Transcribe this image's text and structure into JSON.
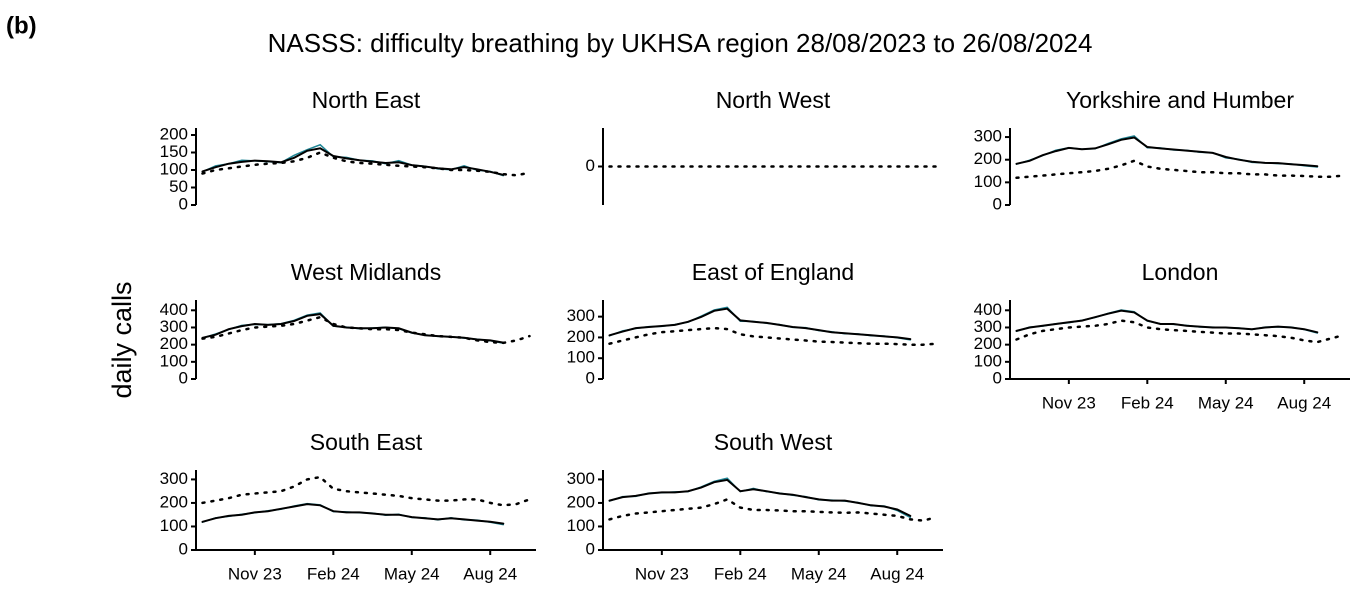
{
  "panel_label": "(b)",
  "title": "NASSS: difficulty breathing by UKHSA region 28/08/2023 to 26/08/2024",
  "y_label": "daily calls",
  "chart_data": [
    {
      "type": "line",
      "title": "North East",
      "x_axis": false,
      "categories": [
        null,
        null,
        null,
        null,
        "Nov 23",
        null,
        null,
        null,
        null,
        null,
        "Feb 24",
        null,
        null,
        null,
        null,
        null,
        "May 24",
        null,
        null,
        null,
        null,
        null,
        "Aug 24",
        null,
        null,
        null
      ],
      "ylim": [
        0,
        220
      ],
      "yticks": [
        0,
        50,
        100,
        150,
        200
      ],
      "series": [
        {
          "color": "#1f8595",
          "line_style": "solid",
          "values": [
            95,
            112,
            118,
            128,
            126,
            124,
            121,
            142,
            158,
            172,
            138,
            136,
            128,
            126,
            118,
            127,
            114,
            111,
            103,
            101,
            112,
            99,
            96,
            84,
            null,
            null
          ]
        },
        {
          "color": "#000000",
          "line_style": "solid",
          "values": [
            96,
            108,
            118,
            123,
            127,
            125,
            122,
            135,
            155,
            162,
            140,
            133,
            128,
            124,
            120,
            122,
            114,
            110,
            105,
            102,
            108,
            102,
            95,
            86,
            null,
            null
          ]
        },
        {
          "color": "#000000",
          "line_style": "dotted",
          "values": [
            90,
            100,
            105,
            110,
            115,
            118,
            120,
            125,
            135,
            150,
            135,
            125,
            120,
            118,
            115,
            112,
            110,
            108,
            105,
            100,
            100,
            98,
            95,
            88,
            85,
            92
          ]
        }
      ]
    },
    {
      "type": "line",
      "title": "North West",
      "x_axis": false,
      "categories": [
        null,
        null,
        null,
        null,
        "Nov 23",
        null,
        null,
        null,
        null,
        null,
        "Feb 24",
        null,
        null,
        null,
        null,
        null,
        "May 24",
        null,
        null,
        null,
        null,
        null,
        "Aug 24",
        null,
        null,
        null
      ],
      "ylim": [
        -1,
        1
      ],
      "yticks": [
        0
      ],
      "series": [
        {
          "color": "#000000",
          "line_style": "dotted",
          "values": [
            0,
            0,
            0,
            0,
            0,
            0,
            0,
            0,
            0,
            0,
            0,
            0,
            0,
            0,
            0,
            0,
            0,
            0,
            0,
            0,
            0,
            0,
            0,
            0,
            0,
            0
          ]
        }
      ]
    },
    {
      "type": "line",
      "title": "Yorkshire and Humber",
      "x_axis": false,
      "categories": [
        null,
        null,
        null,
        null,
        "Nov 23",
        null,
        null,
        null,
        null,
        null,
        "Feb 24",
        null,
        null,
        null,
        null,
        null,
        "May 24",
        null,
        null,
        null,
        null,
        null,
        "Aug 24",
        null,
        null,
        null
      ],
      "ylim": [
        0,
        340
      ],
      "yticks": [
        0,
        100,
        200,
        300
      ],
      "series": [
        {
          "color": "#1f8595",
          "line_style": "solid",
          "values": [
            180,
            198,
            218,
            242,
            253,
            247,
            248,
            272,
            292,
            305,
            253,
            252,
            243,
            242,
            233,
            231,
            208,
            202,
            188,
            186,
            183,
            181,
            173,
            168,
            null,
            null
          ]
        },
        {
          "color": "#000000",
          "line_style": "solid",
          "values": [
            182,
            195,
            220,
            238,
            252,
            246,
            250,
            268,
            288,
            298,
            256,
            250,
            245,
            240,
            235,
            230,
            212,
            200,
            191,
            186,
            185,
            180,
            176,
            171,
            null,
            null
          ]
        },
        {
          "color": "#000000",
          "line_style": "dotted",
          "values": [
            120,
            125,
            130,
            135,
            140,
            145,
            150,
            160,
            175,
            195,
            170,
            160,
            155,
            150,
            145,
            145,
            140,
            140,
            135,
            135,
            130,
            130,
            128,
            125,
            125,
            130
          ]
        }
      ]
    },
    {
      "type": "line",
      "title": "West Midlands",
      "x_axis": false,
      "categories": [
        null,
        null,
        null,
        null,
        "Nov 23",
        null,
        null,
        null,
        null,
        null,
        "Feb 24",
        null,
        null,
        null,
        null,
        null,
        "May 24",
        null,
        null,
        null,
        null,
        null,
        "Aug 24",
        null,
        null,
        null
      ],
      "ylim": [
        0,
        460
      ],
      "yticks": [
        0,
        100,
        200,
        300,
        400
      ],
      "series": [
        {
          "color": "#1f8595",
          "line_style": "solid",
          "values": [
            238,
            262,
            288,
            312,
            318,
            317,
            322,
            342,
            372,
            385,
            308,
            302,
            293,
            297,
            301,
            293,
            268,
            257,
            248,
            246,
            238,
            232,
            223,
            208,
            null,
            null
          ]
        },
        {
          "color": "#000000",
          "line_style": "solid",
          "values": [
            240,
            258,
            290,
            308,
            320,
            315,
            320,
            338,
            368,
            378,
            310,
            300,
            295,
            295,
            300,
            295,
            270,
            255,
            250,
            245,
            240,
            230,
            225,
            212,
            null,
            null
          ]
        },
        {
          "color": "#000000",
          "line_style": "dotted",
          "values": [
            235,
            245,
            265,
            285,
            300,
            305,
            310,
            320,
            340,
            360,
            320,
            300,
            295,
            290,
            290,
            285,
            270,
            260,
            250,
            245,
            240,
            225,
            215,
            210,
            225,
            250
          ]
        }
      ]
    },
    {
      "type": "line",
      "title": "East of England",
      "x_axis": false,
      "categories": [
        null,
        null,
        null,
        null,
        "Nov 23",
        null,
        null,
        null,
        null,
        null,
        "Feb 24",
        null,
        null,
        null,
        null,
        null,
        "May 24",
        null,
        null,
        null,
        null,
        null,
        "Aug 24",
        null,
        null,
        null
      ],
      "ylim": [
        0,
        380
      ],
      "yticks": [
        0,
        100,
        200,
        300
      ],
      "series": [
        {
          "color": "#1f8595",
          "line_style": "solid",
          "values": [
            208,
            232,
            243,
            252,
            253,
            262,
            273,
            302,
            332,
            345,
            278,
            277,
            268,
            262,
            248,
            247,
            233,
            227,
            218,
            217,
            208,
            207,
            198,
            188,
            null,
            null
          ]
        },
        {
          "color": "#000000",
          "line_style": "solid",
          "values": [
            210,
            228,
            245,
            250,
            255,
            260,
            275,
            298,
            328,
            338,
            282,
            275,
            270,
            260,
            250,
            245,
            235,
            225,
            220,
            215,
            210,
            205,
            200,
            192,
            null,
            null
          ]
        },
        {
          "color": "#000000",
          "line_style": "dotted",
          "values": [
            170,
            185,
            200,
            215,
            225,
            230,
            235,
            240,
            245,
            240,
            215,
            205,
            200,
            195,
            190,
            185,
            180,
            178,
            175,
            172,
            170,
            170,
            168,
            165,
            165,
            170
          ]
        }
      ]
    },
    {
      "type": "line",
      "title": "London",
      "x_axis": true,
      "categories": [
        null,
        null,
        null,
        null,
        "Nov 23",
        null,
        null,
        null,
        null,
        null,
        "Feb 24",
        null,
        null,
        null,
        null,
        null,
        "May 24",
        null,
        null,
        null,
        null,
        null,
        "Aug 24",
        null,
        null,
        null
      ],
      "ylim": [
        0,
        460
      ],
      "yticks": [
        0,
        100,
        200,
        300,
        400
      ],
      "series": [
        {
          "color": "#1f8595",
          "line_style": "solid",
          "values": [
            278,
            302,
            308,
            322,
            328,
            342,
            358,
            382,
            402,
            392,
            338,
            322,
            318,
            312,
            303,
            302,
            298,
            297,
            288,
            302,
            303,
            302,
            288,
            268,
            null,
            null
          ]
        },
        {
          "color": "#000000",
          "line_style": "solid",
          "values": [
            280,
            300,
            310,
            320,
            330,
            340,
            360,
            380,
            398,
            388,
            340,
            320,
            320,
            310,
            305,
            300,
            300,
            295,
            290,
            300,
            305,
            300,
            290,
            272,
            null,
            null
          ]
        },
        {
          "color": "#000000",
          "line_style": "dotted",
          "values": [
            230,
            260,
            280,
            290,
            300,
            305,
            310,
            320,
            340,
            330,
            300,
            290,
            285,
            280,
            275,
            270,
            265,
            265,
            260,
            255,
            250,
            240,
            225,
            215,
            235,
            255
          ]
        }
      ]
    },
    {
      "type": "line",
      "title": "South East",
      "x_axis": true,
      "categories": [
        null,
        null,
        null,
        null,
        "Nov 23",
        null,
        null,
        null,
        null,
        null,
        "Feb 24",
        null,
        null,
        null,
        null,
        null,
        "May 24",
        null,
        null,
        null,
        null,
        null,
        "Aug 24",
        null,
        null,
        null
      ],
      "ylim": [
        0,
        340
      ],
      "yticks": [
        0,
        100,
        200,
        300
      ],
      "series": [
        {
          "color": "#1f8595",
          "line_style": "solid",
          "values": [
            118,
            137,
            143,
            152,
            158,
            167,
            173,
            187,
            197,
            192,
            163,
            162,
            158,
            157,
            148,
            152,
            138,
            137,
            128,
            137,
            128,
            127,
            118,
            108,
            null,
            null
          ]
        },
        {
          "color": "#000000",
          "line_style": "solid",
          "values": [
            120,
            135,
            145,
            150,
            160,
            165,
            175,
            185,
            195,
            190,
            165,
            160,
            160,
            155,
            150,
            150,
            140,
            135,
            130,
            135,
            130,
            125,
            120,
            112,
            null,
            null
          ]
        },
        {
          "color": "#000000",
          "line_style": "dotted",
          "values": [
            200,
            210,
            220,
            235,
            240,
            245,
            250,
            270,
            300,
            310,
            260,
            250,
            245,
            240,
            235,
            230,
            220,
            215,
            210,
            210,
            215,
            215,
            200,
            190,
            195,
            215
          ]
        }
      ]
    },
    {
      "type": "line",
      "title": "South West",
      "x_axis": true,
      "categories": [
        null,
        null,
        null,
        null,
        "Nov 23",
        null,
        null,
        null,
        null,
        null,
        "Feb 24",
        null,
        null,
        null,
        null,
        null,
        "May 24",
        null,
        null,
        null,
        null,
        null,
        "Aug 24",
        null,
        null,
        null
      ],
      "ylim": [
        0,
        340
      ],
      "yticks": [
        0,
        100,
        200,
        300
      ],
      "series": [
        {
          "color": "#1f8595",
          "line_style": "solid",
          "values": [
            208,
            227,
            228,
            242,
            243,
            247,
            248,
            268,
            292,
            305,
            248,
            262,
            248,
            242,
            233,
            227,
            213,
            212,
            208,
            202,
            188,
            187,
            168,
            138,
            null,
            null
          ]
        },
        {
          "color": "#000000",
          "line_style": "solid",
          "values": [
            210,
            225,
            230,
            240,
            245,
            245,
            250,
            265,
            288,
            298,
            250,
            258,
            250,
            240,
            235,
            225,
            215,
            210,
            210,
            200,
            190,
            185,
            172,
            145,
            null,
            null
          ]
        },
        {
          "color": "#000000",
          "line_style": "dotted",
          "values": [
            130,
            145,
            155,
            160,
            165,
            170,
            175,
            180,
            195,
            215,
            180,
            170,
            170,
            168,
            165,
            165,
            162,
            160,
            158,
            160,
            155,
            150,
            145,
            130,
            125,
            140
          ]
        }
      ]
    }
  ]
}
